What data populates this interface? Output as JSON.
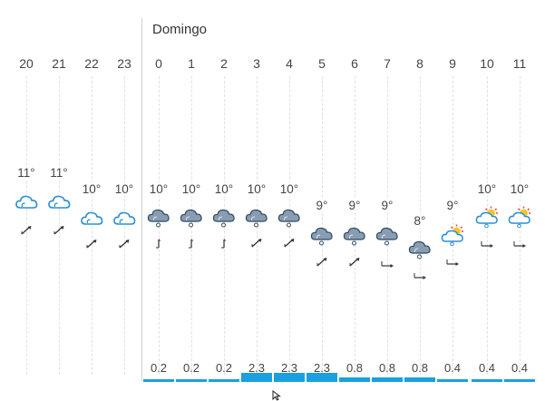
{
  "day_label": "Domingo",
  "columns": [
    {
      "hour": "20",
      "temp": "11°",
      "icon": "cloud-outline-icon",
      "wind": "ne",
      "precip": ""
    },
    {
      "hour": "21",
      "temp": "11°",
      "icon": "cloud-outline-icon",
      "wind": "ne",
      "precip": ""
    },
    {
      "hour": "22",
      "temp": "10°",
      "icon": "cloud-outline-icon",
      "wind": "ne",
      "precip": ""
    },
    {
      "hour": "23",
      "temp": "10°",
      "icon": "cloud-outline-icon",
      "wind": "ne",
      "precip": ""
    },
    {
      "hour": "0",
      "temp": "10°",
      "icon": "cloud-snow-icon",
      "wind": "n",
      "precip": "0.2"
    },
    {
      "hour": "1",
      "temp": "10°",
      "icon": "cloud-snow-icon",
      "wind": "n",
      "precip": "0.2"
    },
    {
      "hour": "2",
      "temp": "10°",
      "icon": "cloud-snow-icon",
      "wind": "n",
      "precip": "0.2"
    },
    {
      "hour": "3",
      "temp": "10°",
      "icon": "cloud-snow-icon",
      "wind": "ne",
      "precip": "2.3"
    },
    {
      "hour": "4",
      "temp": "10°",
      "icon": "cloud-snow-icon",
      "wind": "ne",
      "precip": "2.3"
    },
    {
      "hour": "5",
      "temp": "9°",
      "icon": "cloud-snow-icon",
      "wind": "ne",
      "precip": "2.3"
    },
    {
      "hour": "6",
      "temp": "9°",
      "icon": "cloud-snow-icon",
      "wind": "ne",
      "precip": "0.8"
    },
    {
      "hour": "7",
      "temp": "9°",
      "icon": "cloud-snow-icon",
      "wind": "e",
      "precip": "0.8"
    },
    {
      "hour": "8",
      "temp": "8°",
      "icon": "cloud-snow-icon",
      "wind": "e",
      "precip": "0.8"
    },
    {
      "hour": "9",
      "temp": "9°",
      "icon": "sun-cloud-snow-icon",
      "wind": "e",
      "precip": "0.4"
    },
    {
      "hour": "10",
      "temp": "10°",
      "icon": "sun-cloud-snow-icon",
      "wind": "e",
      "precip": "0.4"
    },
    {
      "hour": "11",
      "temp": "10°",
      "icon": "sun-cloud-snow-icon",
      "wind": "e",
      "precip": "0.4"
    }
  ],
  "colors": {
    "precip_bar": "#1aa0e0",
    "cloud_fill": "#8a9db0",
    "cloud_outline": "#2a8fd6"
  }
}
